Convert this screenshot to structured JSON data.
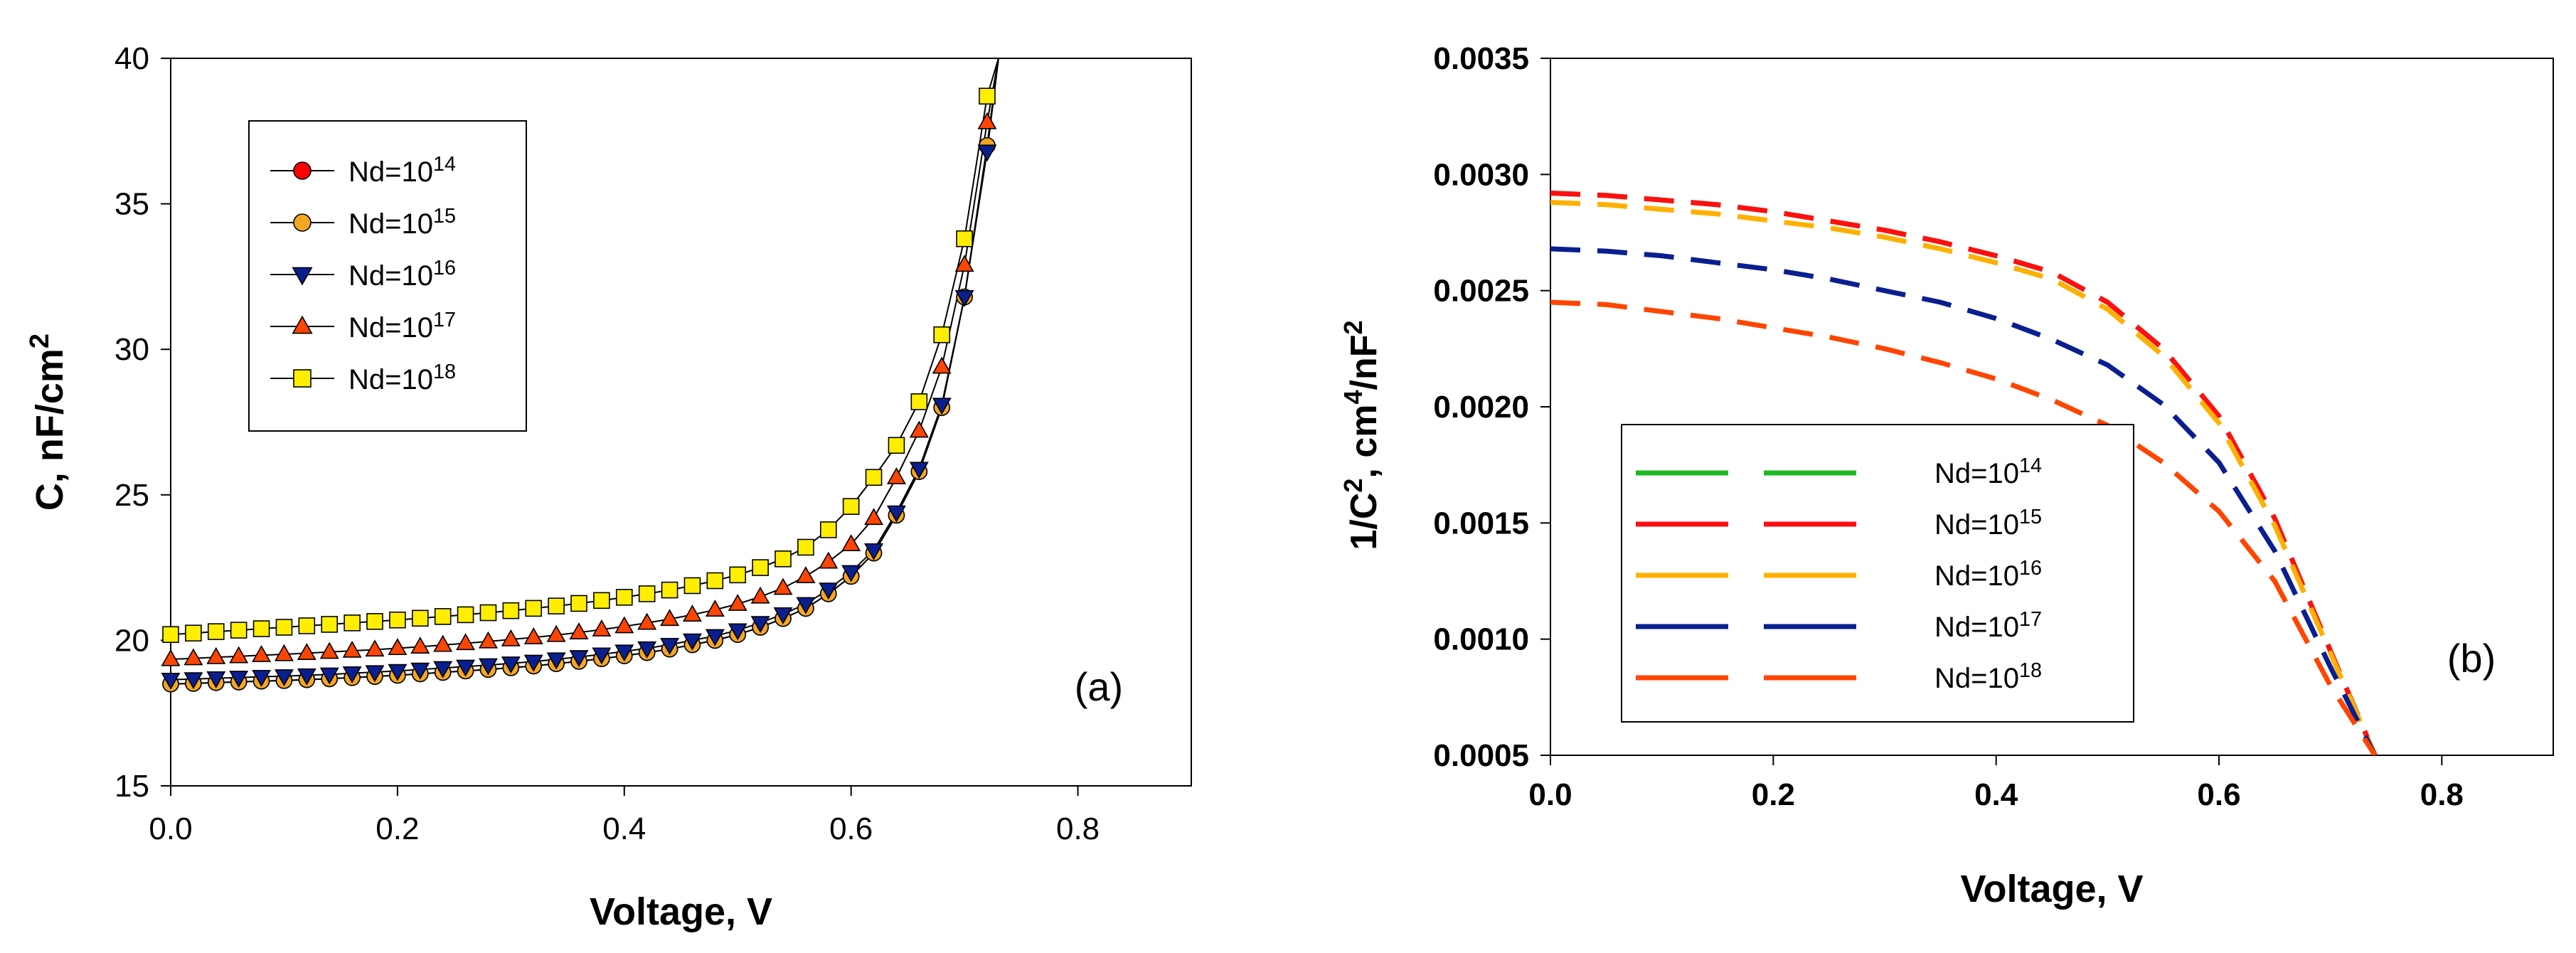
{
  "chart_data": [
    {
      "type": "line",
      "panel_label": "(a)",
      "xlabel": "Voltage, V",
      "ylabel": "C, nF/cm",
      "ylabel_sup": "2",
      "xlim": [
        0.0,
        0.9
      ],
      "ylim": [
        15,
        40
      ],
      "x_ticks": [
        "0.0",
        "0.2",
        "0.4",
        "0.6",
        "0.8"
      ],
      "y_ticks": [
        "15",
        "20",
        "25",
        "30",
        "35",
        "40"
      ],
      "legend_position": "top-left",
      "x": [
        0.0,
        0.02,
        0.04,
        0.06,
        0.08,
        0.1,
        0.12,
        0.14,
        0.16,
        0.18,
        0.2,
        0.22,
        0.24,
        0.26,
        0.28,
        0.3,
        0.32,
        0.34,
        0.36,
        0.38,
        0.4,
        0.42,
        0.44,
        0.46,
        0.48,
        0.5,
        0.52,
        0.54,
        0.56,
        0.58,
        0.6,
        0.62,
        0.64,
        0.66,
        0.68,
        0.7,
        0.72,
        0.73
      ],
      "series": [
        {
          "name": "Nd=10",
          "sup": "14",
          "color": "#ff0000",
          "marker": "circle",
          "values": [
            18.5,
            18.52,
            18.55,
            18.57,
            18.6,
            18.62,
            18.65,
            18.68,
            18.72,
            18.76,
            18.8,
            18.85,
            18.9,
            18.95,
            19.0,
            19.06,
            19.12,
            19.2,
            19.28,
            19.37,
            19.47,
            19.58,
            19.7,
            19.85,
            20.0,
            20.2,
            20.45,
            20.75,
            21.1,
            21.6,
            22.2,
            23.0,
            24.3,
            25.8,
            28.0,
            31.8,
            37.0,
            40.0
          ]
        },
        {
          "name": "Nd=10",
          "sup": "15",
          "color": "#f5a623",
          "marker": "circle",
          "values": [
            18.5,
            18.52,
            18.55,
            18.57,
            18.6,
            18.62,
            18.65,
            18.68,
            18.72,
            18.76,
            18.8,
            18.85,
            18.9,
            18.95,
            19.0,
            19.06,
            19.12,
            19.2,
            19.28,
            19.37,
            19.47,
            19.58,
            19.7,
            19.85,
            20.0,
            20.2,
            20.45,
            20.75,
            21.1,
            21.6,
            22.2,
            23.0,
            24.3,
            25.8,
            28.0,
            31.8,
            37.0,
            40.0
          ]
        },
        {
          "name": "Nd=10",
          "sup": "16",
          "color": "#0a1f8f",
          "marker": "triangle-down",
          "values": [
            18.65,
            18.67,
            18.7,
            18.72,
            18.75,
            18.77,
            18.8,
            18.83,
            18.87,
            18.91,
            18.95,
            19.0,
            19.05,
            19.1,
            19.15,
            19.21,
            19.27,
            19.35,
            19.43,
            19.52,
            19.62,
            19.73,
            19.85,
            20.0,
            20.15,
            20.35,
            20.6,
            20.9,
            21.25,
            21.75,
            22.35,
            23.1,
            24.4,
            25.9,
            28.1,
            31.8,
            36.8,
            40.0
          ]
        },
        {
          "name": "Nd=10",
          "sup": "17",
          "color": "#ff4500",
          "marker": "triangle-up",
          "values": [
            19.35,
            19.38,
            19.42,
            19.45,
            19.49,
            19.52,
            19.56,
            19.6,
            19.64,
            19.68,
            19.73,
            19.78,
            19.84,
            19.9,
            19.96,
            20.03,
            20.1,
            20.18,
            20.27,
            20.37,
            20.48,
            20.6,
            20.73,
            20.88,
            21.05,
            21.25,
            21.5,
            21.8,
            22.2,
            22.7,
            23.3,
            24.2,
            25.6,
            27.2,
            29.4,
            32.9,
            37.8,
            40.0
          ]
        },
        {
          "name": "Nd=10",
          "sup": "18",
          "color": "#ffee00",
          "marker": "square",
          "values": [
            20.2,
            20.25,
            20.3,
            20.35,
            20.4,
            20.45,
            20.5,
            20.55,
            20.6,
            20.65,
            20.7,
            20.76,
            20.82,
            20.88,
            20.95,
            21.02,
            21.1,
            21.18,
            21.27,
            21.37,
            21.48,
            21.6,
            21.73,
            21.88,
            22.05,
            22.25,
            22.5,
            22.8,
            23.2,
            23.8,
            24.6,
            25.6,
            26.7,
            28.2,
            30.5,
            33.8,
            38.7,
            40.0
          ]
        }
      ]
    },
    {
      "type": "line",
      "panel_label": "(b)",
      "xlabel": "Voltage, V",
      "ylabel_parts": [
        "1/C",
        "2",
        ", cm",
        "4",
        "/nF",
        "2"
      ],
      "xlim": [
        0.0,
        0.9
      ],
      "ylim": [
        0.0005,
        0.0035
      ],
      "x_ticks": [
        "0.0",
        "0.2",
        "0.4",
        "0.6",
        "0.8"
      ],
      "y_ticks": [
        "0.0005",
        "0.0010",
        "0.0015",
        "0.0020",
        "0.0025",
        "0.0030",
        "0.0035"
      ],
      "legend_position": "bottom-left",
      "x": [
        0.0,
        0.05,
        0.1,
        0.15,
        0.2,
        0.25,
        0.3,
        0.35,
        0.4,
        0.45,
        0.5,
        0.55,
        0.6,
        0.65,
        0.7,
        0.74
      ],
      "series": [
        {
          "name": "Nd=10",
          "sup": "14",
          "color": "#22b822",
          "values": [
            0.00292,
            0.00291,
            0.00289,
            0.00287,
            0.00284,
            0.0028,
            0.00276,
            0.00271,
            0.00265,
            0.00258,
            0.00245,
            0.00225,
            0.00196,
            0.00152,
            0.00095,
            0.0005
          ]
        },
        {
          "name": "Nd=10",
          "sup": "15",
          "color": "#ff1010",
          "values": [
            0.00292,
            0.00291,
            0.00289,
            0.00287,
            0.00284,
            0.0028,
            0.00276,
            0.00271,
            0.00265,
            0.00258,
            0.00245,
            0.00225,
            0.00196,
            0.00152,
            0.00095,
            0.0005
          ]
        },
        {
          "name": "Nd=10",
          "sup": "16",
          "color": "#ffb000",
          "values": [
            0.00288,
            0.00287,
            0.00285,
            0.00283,
            0.0028,
            0.00277,
            0.00273,
            0.00268,
            0.00262,
            0.00255,
            0.00242,
            0.00222,
            0.00193,
            0.00149,
            0.00094,
            0.0005
          ]
        },
        {
          "name": "Nd=10",
          "sup": "17",
          "color": "#0a1f8f",
          "values": [
            0.00268,
            0.00267,
            0.00265,
            0.00262,
            0.00259,
            0.00255,
            0.0025,
            0.00245,
            0.00238,
            0.00229,
            0.00218,
            0.00201,
            0.00176,
            0.00138,
            0.00088,
            0.0005
          ]
        },
        {
          "name": "Nd=10",
          "sup": "18",
          "color": "#ff4500",
          "values": [
            0.00245,
            0.00244,
            0.00241,
            0.00238,
            0.00234,
            0.0023,
            0.00225,
            0.00219,
            0.00212,
            0.00203,
            0.00192,
            0.00176,
            0.00155,
            0.00125,
            0.0008,
            0.0005
          ]
        }
      ]
    }
  ]
}
